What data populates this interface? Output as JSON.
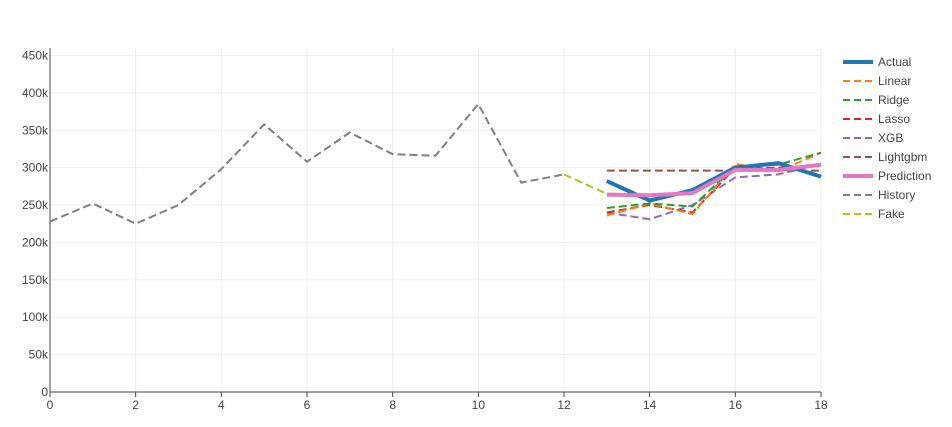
{
  "chart_data": {
    "type": "line",
    "title": "",
    "xlabel": "",
    "ylabel": "",
    "xlim": [
      0,
      18
    ],
    "ylim": [
      0,
      460000
    ],
    "x_ticks": [
      0,
      2,
      4,
      6,
      8,
      10,
      12,
      14,
      16,
      18
    ],
    "x_tick_labels": [
      "0",
      "2",
      "4",
      "6",
      "8",
      "10",
      "12",
      "14",
      "16",
      "18"
    ],
    "y_ticks": [
      0,
      50000,
      100000,
      150000,
      200000,
      250000,
      300000,
      350000,
      400000,
      450000
    ],
    "y_tick_labels": [
      "0",
      "50k",
      "100k",
      "150k",
      "200k",
      "250k",
      "300k",
      "350k",
      "400k",
      "450k"
    ],
    "grid": true,
    "legend_position": "right",
    "series": [
      {
        "name": "Actual",
        "color": "#1f77b4",
        "dash": "solid",
        "width": 4,
        "x": [
          13,
          14,
          15,
          16,
          17,
          18
        ],
        "y": [
          282000,
          256000,
          270000,
          300000,
          306000,
          288000
        ]
      },
      {
        "name": "Linear",
        "color": "#ff7f0e",
        "dash": "dash",
        "width": 2,
        "x": [
          13,
          14,
          15,
          16,
          17,
          18
        ],
        "y": [
          236000,
          252000,
          238000,
          305000,
          295000,
          320000
        ]
      },
      {
        "name": "Ridge",
        "color": "#2ca02c",
        "dash": "dash",
        "width": 2,
        "x": [
          13,
          14,
          15,
          16,
          17,
          18
        ],
        "y": [
          246000,
          252000,
          248000,
          302000,
          304000,
          320000
        ]
      },
      {
        "name": "Lasso",
        "color": "#d62728",
        "dash": "dash",
        "width": 2,
        "x": [
          13,
          14,
          15,
          16,
          17,
          18
        ],
        "y": [
          240000,
          250000,
          240000,
          300000,
          300000,
          303000
        ]
      },
      {
        "name": "XGB",
        "color": "#9467bd",
        "dash": "dash",
        "width": 2,
        "x": [
          13,
          14,
          15,
          16,
          17,
          18
        ],
        "y": [
          240000,
          231000,
          250000,
          287000,
          291000,
          305000
        ]
      },
      {
        "name": "Lightgbm",
        "color": "#8c564b",
        "dash": "dash",
        "width": 2,
        "x": [
          13,
          14,
          15,
          16,
          17,
          18
        ],
        "y": [
          296000,
          296000,
          296000,
          296000,
          296000,
          296000
        ]
      },
      {
        "name": "Prediction",
        "color": "#e377c2",
        "dash": "solid",
        "width": 4,
        "x": [
          13,
          14,
          15,
          16,
          17,
          18
        ],
        "y": [
          264000,
          263000,
          266000,
          297000,
          297000,
          304000
        ]
      },
      {
        "name": "History",
        "color": "#7f7f7f",
        "dash": "dash",
        "width": 2,
        "x": [
          0,
          1,
          2,
          3,
          4,
          5,
          6,
          7,
          8,
          9,
          10,
          11,
          12
        ],
        "y": [
          228000,
          252000,
          225000,
          250000,
          298000,
          358000,
          308000,
          347000,
          318000,
          316000,
          385000,
          280000,
          291000
        ]
      },
      {
        "name": "Fake",
        "color": "#bcbd22",
        "dash": "dash",
        "width": 2,
        "x": [
          12,
          13
        ],
        "y": [
          291000,
          265000
        ]
      }
    ]
  }
}
